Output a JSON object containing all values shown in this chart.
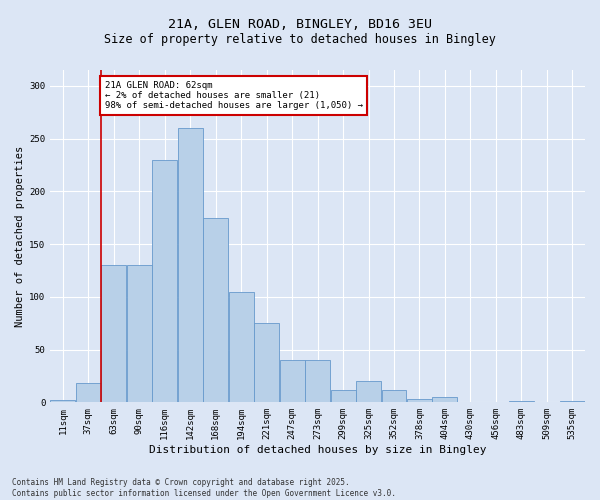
{
  "title_line1": "21A, GLEN ROAD, BINGLEY, BD16 3EU",
  "title_line2": "Size of property relative to detached houses in Bingley",
  "xlabel": "Distribution of detached houses by size in Bingley",
  "ylabel": "Number of detached properties",
  "categories": [
    "11sqm",
    "37sqm",
    "63sqm",
    "90sqm",
    "116sqm",
    "142sqm",
    "168sqm",
    "194sqm",
    "221sqm",
    "247sqm",
    "273sqm",
    "299sqm",
    "325sqm",
    "352sqm",
    "378sqm",
    "404sqm",
    "430sqm",
    "456sqm",
    "483sqm",
    "509sqm",
    "535sqm"
  ],
  "values": [
    2,
    18,
    130,
    130,
    230,
    260,
    175,
    105,
    75,
    40,
    40,
    12,
    20,
    12,
    3,
    5,
    0,
    0,
    1,
    0,
    1
  ],
  "bar_color": "#b8d0e8",
  "bar_edge_color": "#6699cc",
  "background_color": "#dce6f5",
  "grid_color": "#ffffff",
  "vline_x": 1.5,
  "vline_color": "#cc0000",
  "annotation_text": "21A GLEN ROAD: 62sqm\n← 2% of detached houses are smaller (21)\n98% of semi-detached houses are larger (1,050) →",
  "annotation_box_color": "#ffffff",
  "annotation_box_edge": "#cc0000",
  "ylim": [
    0,
    315
  ],
  "yticks": [
    0,
    50,
    100,
    150,
    200,
    250,
    300
  ],
  "footnote": "Contains HM Land Registry data © Crown copyright and database right 2025.\nContains public sector information licensed under the Open Government Licence v3.0.",
  "bar_width": 0.98,
  "title1_fontsize": 9.5,
  "title2_fontsize": 8.5,
  "xlabel_fontsize": 8,
  "ylabel_fontsize": 7.5,
  "tick_fontsize": 6.5,
  "annot_fontsize": 6.5,
  "footnote_fontsize": 5.5
}
